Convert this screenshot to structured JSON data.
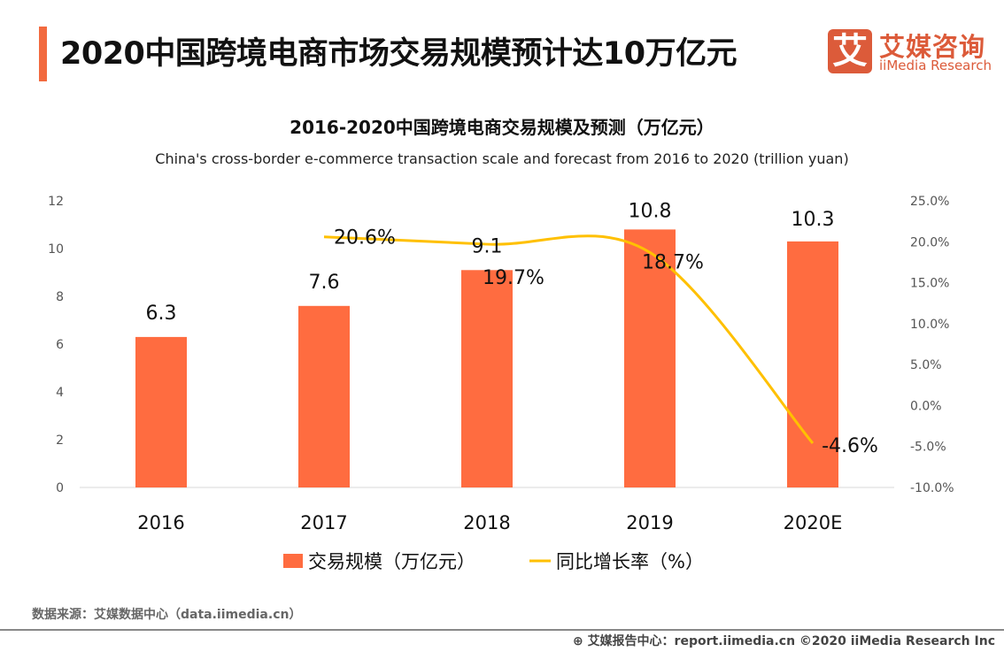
{
  "header": {
    "title": "2020中国跨境电商市场交易规模预计达10万亿元",
    "logo_mark": "艾",
    "logo_cn": "艾媒咨询",
    "logo_en": "iiMedia Research",
    "accent": "#f26a3f"
  },
  "chart_data": {
    "type": "bar+line",
    "title": "2016-2020中国跨境电商交易规模及预测（万亿元）",
    "subtitle": "China's cross-border e-commerce transaction scale and forecast from 2016 to 2020 (trillion yuan)",
    "categories": [
      "2016",
      "2017",
      "2018",
      "2019",
      "2020E"
    ],
    "left_axis": {
      "ylim": [
        0,
        12
      ],
      "ticks": [
        "0",
        "2",
        "4",
        "6",
        "8",
        "10",
        "12"
      ]
    },
    "right_axis": {
      "ylim": [
        -10,
        25
      ],
      "ticks": [
        "-10.0%",
        "-5.0%",
        "0.0%",
        "5.0%",
        "10.0%",
        "15.0%",
        "20.0%",
        "25.0%"
      ]
    },
    "series": [
      {
        "name": "交易规模（万亿元）",
        "type": "bar",
        "color": "#ff6c40",
        "values": [
          6.3,
          7.6,
          9.1,
          10.8,
          10.3
        ],
        "labels": [
          "6.3",
          "7.6",
          "9.1",
          "10.8",
          "10.3"
        ]
      },
      {
        "name": "同比增长率（%）",
        "type": "line",
        "color": "#ffc000",
        "values": [
          null,
          20.6,
          19.7,
          18.7,
          -4.6
        ],
        "labels": [
          "",
          "20.6%",
          "19.7%",
          "18.7%",
          "-4.6%"
        ]
      }
    ],
    "legend": "bottom",
    "grid": false
  },
  "footer": {
    "source": "数据来源：艾媒数据中心（data.iimedia.cn）",
    "report": "艾媒报告中心：report.iimedia.cn   ©2020  iiMedia Research  Inc"
  }
}
